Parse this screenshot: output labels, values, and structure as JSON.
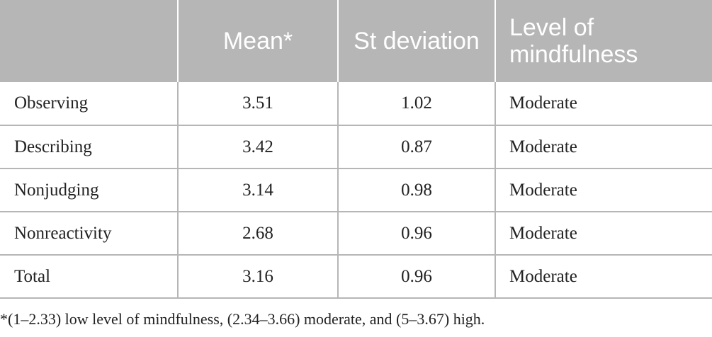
{
  "table": {
    "headers": [
      "",
      "Mean*",
      "St deviation",
      "Level of mindfulness"
    ],
    "rows": [
      [
        "Observing",
        "3.51",
        "1.02",
        "Moderate"
      ],
      [
        "Describing",
        "3.42",
        "0.87",
        "Moderate"
      ],
      [
        "Nonjudging",
        "3.14",
        "0.98",
        "Moderate"
      ],
      [
        "Nonreactivity",
        "2.68",
        "0.96",
        "Moderate"
      ],
      [
        "Total",
        "3.16",
        "0.96",
        "Moderate"
      ]
    ]
  },
  "footnote": "*(1–2.33) low level of mindfulness, (2.34–3.66) moderate, and (5–3.67) high."
}
